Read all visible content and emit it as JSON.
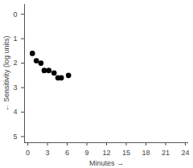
{
  "chart_data": {
    "type": "scatter",
    "x_label": "Minutes",
    "y_label": "Sensitivity (log units)",
    "x": [
      0.7,
      1.3,
      2.0,
      2.5,
      3.2,
      4.0,
      4.6,
      5.1,
      6.2
    ],
    "values": [
      1.6,
      1.9,
      2.0,
      2.3,
      2.3,
      2.4,
      2.6,
      2.6,
      2.5
    ],
    "color": "#000000",
    "marker": "circle",
    "xlim": [
      -0.5,
      24.5
    ],
    "xticks": [
      0,
      3,
      6,
      9,
      12,
      15,
      18,
      21,
      24
    ],
    "ylim": [
      5.25,
      -0.4
    ],
    "yticks": [
      0,
      1,
      2,
      3,
      4,
      5
    ],
    "grid": false
  }
}
